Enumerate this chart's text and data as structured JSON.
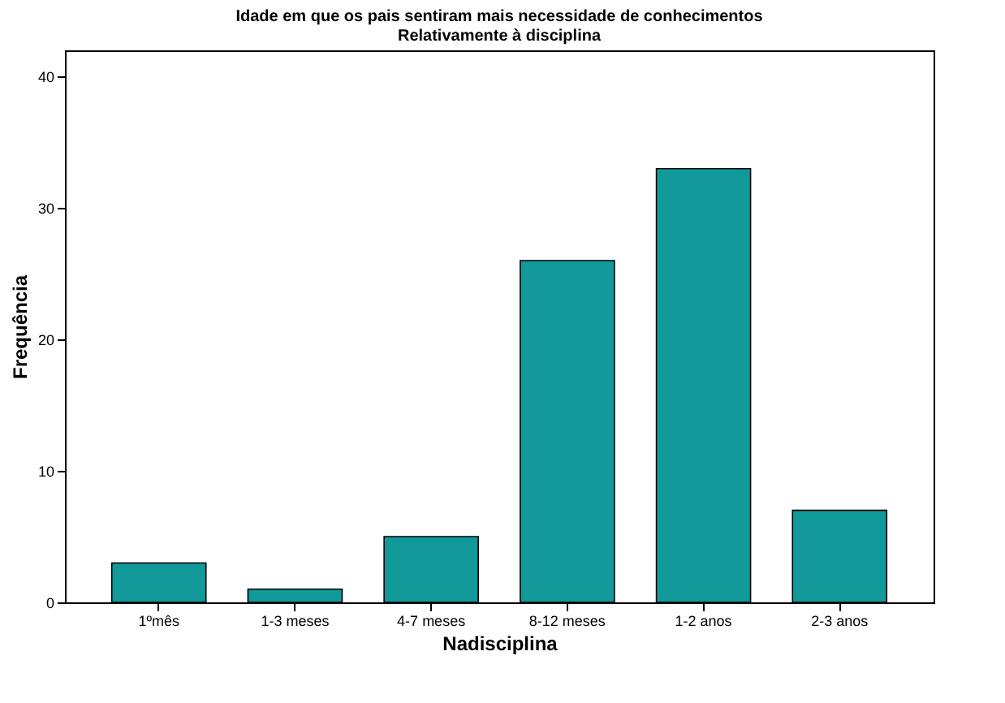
{
  "chart_data": {
    "type": "bar",
    "title": [
      "Idade em que os pais sentiram mais necessidade de conhecimentos",
      "Relativamente à disciplina"
    ],
    "xlabel": "Nadisciplina",
    "ylabel": "Frequência",
    "categories": [
      "1ºmês",
      "1-3 meses",
      "4-7 meses",
      "8-12 meses",
      "1-2 anos",
      "2-3 anos"
    ],
    "values": [
      3,
      1,
      5,
      26,
      33,
      7
    ],
    "color": "#119a99",
    "ylim": [
      0,
      42
    ],
    "yticks": [
      0,
      10,
      20,
      30,
      40
    ],
    "grid": false
  }
}
